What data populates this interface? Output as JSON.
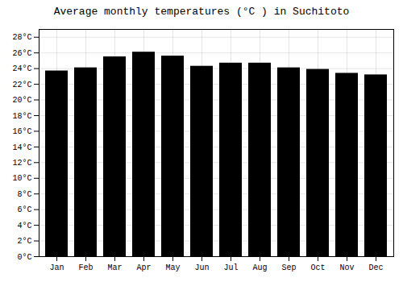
{
  "chart_data": {
    "type": "bar",
    "title": "Average monthly temperatures (°C ) in Suchitoto",
    "categories": [
      "Jan",
      "Feb",
      "Mar",
      "Apr",
      "May",
      "Jun",
      "Jul",
      "Aug",
      "Sep",
      "Oct",
      "Nov",
      "Dec"
    ],
    "values": [
      23.7,
      24.1,
      25.5,
      26.1,
      25.6,
      24.3,
      24.7,
      24.7,
      24.1,
      23.9,
      23.4,
      23.2
    ],
    "ylim": [
      0,
      29
    ],
    "yticks": [
      {
        "value": 0,
        "label": "0°C"
      },
      {
        "value": 2,
        "label": "2°C"
      },
      {
        "value": 4,
        "label": "4°C"
      },
      {
        "value": 6,
        "label": "6°C"
      },
      {
        "value": 8,
        "label": "8°C"
      },
      {
        "value": 10,
        "label": "10°C"
      },
      {
        "value": 12,
        "label": "12°C"
      },
      {
        "value": 14,
        "label": "14°C"
      },
      {
        "value": 16,
        "label": "16°C"
      },
      {
        "value": 18,
        "label": "18°C"
      },
      {
        "value": 20,
        "label": "20°C"
      },
      {
        "value": 22,
        "label": "22°C"
      },
      {
        "value": 24,
        "label": "24°C"
      },
      {
        "value": 26,
        "label": "26°C"
      },
      {
        "value": 28,
        "label": "28°C"
      }
    ],
    "grid": true
  }
}
